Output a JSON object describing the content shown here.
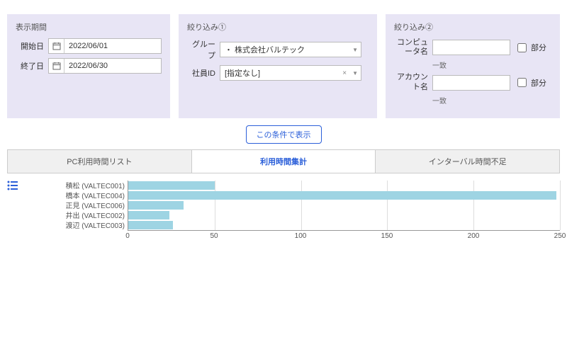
{
  "filters": {
    "period": {
      "title": "表示期間",
      "start_label": "開始日",
      "start_value": "2022/06/01",
      "end_label": "終了日",
      "end_value": "2022/06/30"
    },
    "filter1": {
      "title": "絞り込み①",
      "group_label": "グループ",
      "group_value": "・ 株式会社バルテック",
      "emp_label": "社員ID",
      "emp_value": "[指定なし]"
    },
    "filter2": {
      "title": "絞り込み②",
      "computer_label": "コンピュータ名",
      "computer_value": "",
      "account_label": "アカウント名",
      "account_value": "",
      "match_suffix": "一致",
      "partial_label": "部分"
    }
  },
  "submit_label": "この条件で表示",
  "tabs": [
    {
      "label": "PC利用時間リスト",
      "active": false
    },
    {
      "label": "利用時間集計",
      "active": true
    },
    {
      "label": "インターバル時間不足",
      "active": false
    }
  ],
  "chart": {
    "type": "bar-horizontal",
    "xmax": 250,
    "ticks": [
      0,
      50,
      100,
      150,
      200,
      250
    ],
    "bar_color": "#9ed4e3",
    "grid_color": "#dddddd",
    "rows": [
      {
        "label": "積松 (VALTEC001)",
        "value": 50
      },
      {
        "label": "橋本 (VALTEC004)",
        "value": 248
      },
      {
        "label": "正見 (VALTEC006)",
        "value": 32
      },
      {
        "label": "井出 (VALTEC002)",
        "value": 24
      },
      {
        "label": "渡辺 (VALTEC003)",
        "value": 26
      }
    ]
  }
}
